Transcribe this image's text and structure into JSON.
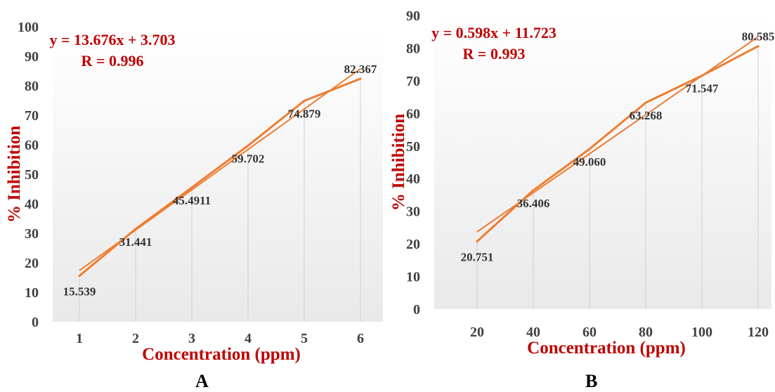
{
  "colors": {
    "line": "#ED7D31",
    "red_text": "#C00000",
    "tick_text": "#404040",
    "label_text": "#333333",
    "drop_line": "#D0D0D0",
    "bg_top": "#FFFFFF",
    "bg_bottom": "#E9E9E9"
  },
  "chart_data": [
    {
      "type": "line",
      "panel_label": "A",
      "ylabel": "% Inhibition",
      "xlabel": "Concentration (ppm)",
      "equation": "y = 13.676x + 3.703",
      "r_text": "R = 0.996",
      "x": [
        1,
        2,
        3,
        4,
        5,
        6
      ],
      "x_tick_labels": [
        "1",
        "2",
        "3",
        "4",
        "5",
        "6"
      ],
      "values": [
        15.539,
        31.441,
        45.4911,
        59.702,
        74.879,
        82.367
      ],
      "data_labels": [
        "15.539",
        "31.441",
        "45.4911",
        "59.702",
        "74.879",
        "82.367"
      ],
      "trendline": {
        "slope": 13.676,
        "intercept": 3.703
      },
      "ylim": [
        0,
        100
      ],
      "y_ticks": [
        0,
        10,
        20,
        30,
        40,
        50,
        60,
        70,
        80,
        90,
        100
      ],
      "grid": false,
      "drop_lines": true,
      "legend": "none"
    },
    {
      "type": "line",
      "panel_label": "B",
      "ylabel": "% Inhibition",
      "xlabel": "Concentration (ppm)",
      "equation": "y = 0.598x + 11.723",
      "r_text": "R = 0.993",
      "x": [
        20,
        40,
        60,
        80,
        100,
        120
      ],
      "x_tick_labels": [
        "20",
        "40",
        "60",
        "80",
        "100",
        "120"
      ],
      "values": [
        20.751,
        36.406,
        49.06,
        63.268,
        71.547,
        80.585
      ],
      "data_labels": [
        "20.751",
        "36.406",
        "49.060",
        "63.268",
        "71.547",
        "80.585"
      ],
      "trendline": {
        "slope": 0.598,
        "intercept": 11.723
      },
      "ylim": [
        0,
        90
      ],
      "y_ticks": [
        0,
        10,
        20,
        30,
        40,
        50,
        60,
        70,
        80,
        90
      ],
      "grid": false,
      "drop_lines": true,
      "legend": "none"
    }
  ]
}
